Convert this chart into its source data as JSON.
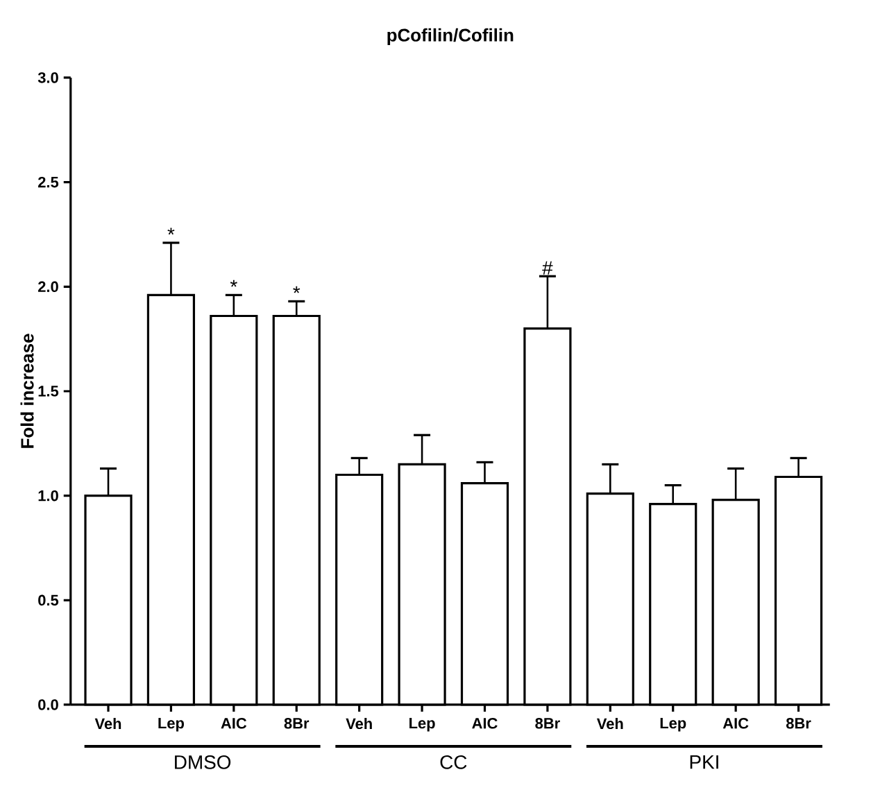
{
  "chart_data": {
    "type": "bar",
    "title": "pCofilin/Cofilin",
    "ylabel": "Fold increase",
    "categories": [
      "Veh",
      "Lep",
      "AIC",
      "8Br",
      "Veh",
      "Lep",
      "AIC",
      "8Br",
      "Veh",
      "Lep",
      "AIC",
      "8Br"
    ],
    "values": [
      1.0,
      1.96,
      1.86,
      1.86,
      1.1,
      1.15,
      1.06,
      1.8,
      1.01,
      0.96,
      0.98,
      1.09
    ],
    "errors": [
      [
        1.0,
        1.13
      ],
      [
        1.96,
        2.21
      ],
      [
        1.86,
        1.96
      ],
      [
        1.86,
        1.93
      ],
      [
        1.1,
        1.18
      ],
      [
        1.15,
        1.29
      ],
      [
        1.06,
        1.16
      ],
      [
        1.8,
        2.05
      ],
      [
        1.01,
        1.15
      ],
      [
        0.96,
        1.05
      ],
      [
        0.98,
        1.13
      ],
      [
        1.09,
        1.18
      ]
    ],
    "value_labels": [
      null,
      "*",
      "*",
      "*",
      null,
      null,
      null,
      "#",
      null,
      null,
      null,
      null
    ],
    "color": "#ffffff",
    "ylim": [
      0,
      3
    ],
    "yticks": [
      {
        "value": 0,
        "label": "0.0"
      },
      0.5,
      {
        "value": 1,
        "label": "1.0"
      },
      1.5,
      {
        "value": 2,
        "label": "2.0"
      },
      2.5,
      {
        "value": 3,
        "label": "3.0"
      }
    ],
    "annotations": [
      "DMSO",
      "CC",
      "PKI"
    ]
  }
}
